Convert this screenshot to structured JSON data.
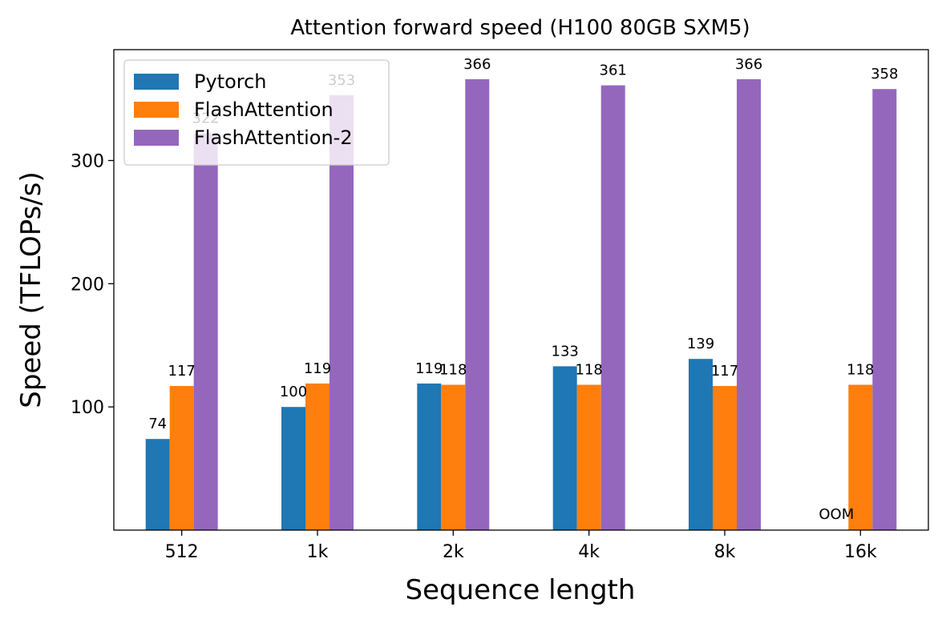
{
  "chart_data": {
    "type": "bar",
    "title": "Attention forward speed (H100 80GB SXM5)",
    "xlabel": "Sequence length",
    "ylabel": "Speed (TFLOPs/s)",
    "categories": [
      "512",
      "1k",
      "2k",
      "4k",
      "8k",
      "16k"
    ],
    "ylim": [
      0,
      390
    ],
    "yticks": [
      100,
      200,
      300
    ],
    "grid": false,
    "legend_position": "top-left",
    "series": [
      {
        "name": "Pytorch",
        "color": "#1f77b4",
        "values": [
          74,
          100,
          119,
          133,
          139,
          null
        ],
        "labels": [
          "74",
          "100",
          "119",
          "133",
          "139",
          "OOM"
        ]
      },
      {
        "name": "FlashAttention",
        "color": "#ff7f0e",
        "values": [
          117,
          119,
          118,
          118,
          117,
          118
        ],
        "labels": [
          "117",
          "119",
          "118",
          "118",
          "117",
          "118"
        ]
      },
      {
        "name": "FlashAttention-2",
        "color": "#9467bd",
        "values": [
          322,
          353,
          366,
          361,
          366,
          358
        ],
        "labels": [
          "322",
          "353",
          "366",
          "361",
          "366",
          "358"
        ]
      }
    ]
  }
}
